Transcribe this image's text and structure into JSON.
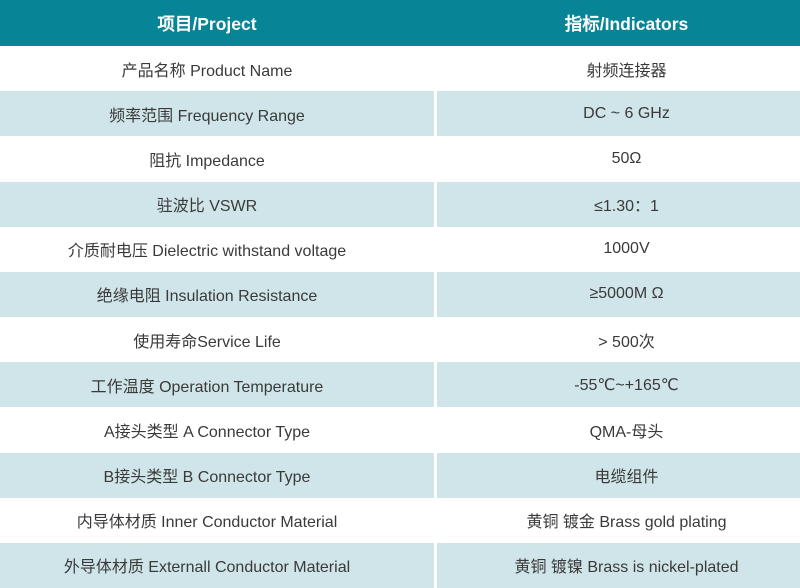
{
  "table": {
    "header": {
      "project_label": "项目/Project",
      "indicator_label": "指标/Indicators"
    },
    "rows": [
      {
        "project": "产品名称 Product Name",
        "indicator": "射频连接器"
      },
      {
        "project": "频率范围 Frequency Range",
        "indicator": "DC ~ 6 GHz"
      },
      {
        "project": "阻抗 Impedance",
        "indicator": "50Ω"
      },
      {
        "project": "驻波比 VSWR",
        "indicator": "≤1.30：1"
      },
      {
        "project": "介质耐电压 Dielectric withstand voltage",
        "indicator": "1000V"
      },
      {
        "project": "绝缘电阻 Insulation Resistance",
        "indicator": "≥5000M Ω"
      },
      {
        "project": "使用寿命Service Life",
        "indicator": "> 500次"
      },
      {
        "project": "工作温度 Operation Temperature",
        "indicator": "-55℃~+165℃"
      },
      {
        "project": "A接头类型 A Connector Type",
        "indicator": "QMA-母头"
      },
      {
        "project": "B接头类型 B Connector Type",
        "indicator": "电缆组件"
      },
      {
        "project": "内导体材质 Inner Conductor Material",
        "indicator": "黄铜 镀金 Brass gold plating"
      },
      {
        "project": "外导体材质 Externall Conductor Material",
        "indicator": "黄铜 镀镍 Brass is nickel-plated"
      }
    ],
    "colors": {
      "header_bg": "#078495",
      "header_text": "#ffffff",
      "alt_row_bg": "#cfe5e9",
      "plain_row_bg": "#ffffff",
      "body_text": "#3a3a3a"
    }
  }
}
